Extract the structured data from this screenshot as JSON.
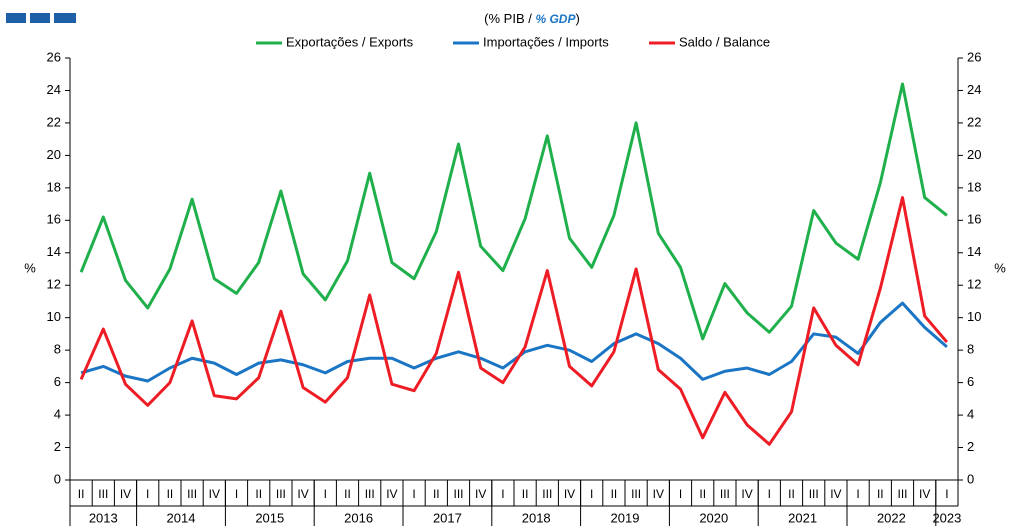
{
  "chart_data": {
    "type": "line",
    "subtitle_parts": [
      "(% PIB / ",
      "% GDP",
      ")"
    ],
    "y_label": "%",
    "y2_label": "%",
    "categories": [
      "II",
      "III",
      "IV",
      "I",
      "II",
      "III",
      "IV",
      "I",
      "II",
      "III",
      "IV",
      "I",
      "II",
      "III",
      "IV",
      "I",
      "II",
      "III",
      "IV",
      "I",
      "II",
      "III",
      "IV",
      "I",
      "II",
      "III",
      "IV",
      "I",
      "II",
      "III",
      "IV",
      "I",
      "II",
      "III",
      "IV",
      "I",
      "II",
      "III",
      "IV",
      "I"
    ],
    "years": [
      "2013",
      "2014",
      "2015",
      "2016",
      "2017",
      "2018",
      "2019",
      "2020",
      "2021",
      "2022",
      "2023"
    ],
    "series": [
      {
        "name": "Exportações / Exports",
        "color": "#1fb04b",
        "values": [
          12.8,
          16.2,
          12.3,
          10.6,
          13.0,
          17.3,
          12.4,
          11.5,
          13.4,
          17.8,
          12.7,
          11.1,
          13.5,
          18.9,
          13.4,
          12.4,
          15.3,
          20.7,
          14.4,
          12.9,
          16.1,
          21.2,
          14.9,
          13.1,
          16.3,
          22.0,
          15.2,
          13.1,
          8.7,
          12.1,
          10.3,
          9.1,
          10.7,
          16.6,
          14.6,
          13.6,
          18.3,
          24.4,
          17.4,
          16.3
        ]
      },
      {
        "name": "Importações / Imports",
        "color": "#1a75c4",
        "values": [
          6.6,
          7.0,
          6.4,
          6.1,
          6.9,
          7.5,
          7.2,
          6.5,
          7.2,
          7.4,
          7.1,
          6.6,
          7.3,
          7.5,
          7.5,
          6.9,
          7.5,
          7.9,
          7.5,
          6.9,
          7.9,
          8.3,
          8.0,
          7.3,
          8.4,
          9.0,
          8.4,
          7.5,
          6.2,
          6.7,
          6.9,
          6.5,
          7.3,
          9.0,
          8.8,
          7.8,
          9.7,
          10.9,
          9.4,
          8.2
        ]
      },
      {
        "name": "Saldo / Balance",
        "color": "#ee1c25",
        "values": [
          6.2,
          9.3,
          5.9,
          4.6,
          6.0,
          9.8,
          5.2,
          5.0,
          6.3,
          10.4,
          5.7,
          4.8,
          6.3,
          11.4,
          5.9,
          5.5,
          7.8,
          12.8,
          6.9,
          6.0,
          8.2,
          12.9,
          7.0,
          5.8,
          7.9,
          13.0,
          6.8,
          5.6,
          2.6,
          5.4,
          3.4,
          2.2,
          4.2,
          10.6,
          8.3,
          7.1,
          11.8,
          17.4,
          10.1,
          8.5
        ]
      }
    ],
    "ylim": [
      0,
      26
    ],
    "yticks": [
      0,
      2,
      4,
      6,
      8,
      10,
      12,
      14,
      16,
      18,
      20,
      22,
      24,
      26
    ],
    "y2lim": [
      0,
      26
    ],
    "y2ticks": [
      0,
      2,
      4,
      6,
      8,
      10,
      12,
      14,
      16,
      18,
      20,
      22,
      24,
      26
    ],
    "grid": false,
    "legend": "top"
  }
}
